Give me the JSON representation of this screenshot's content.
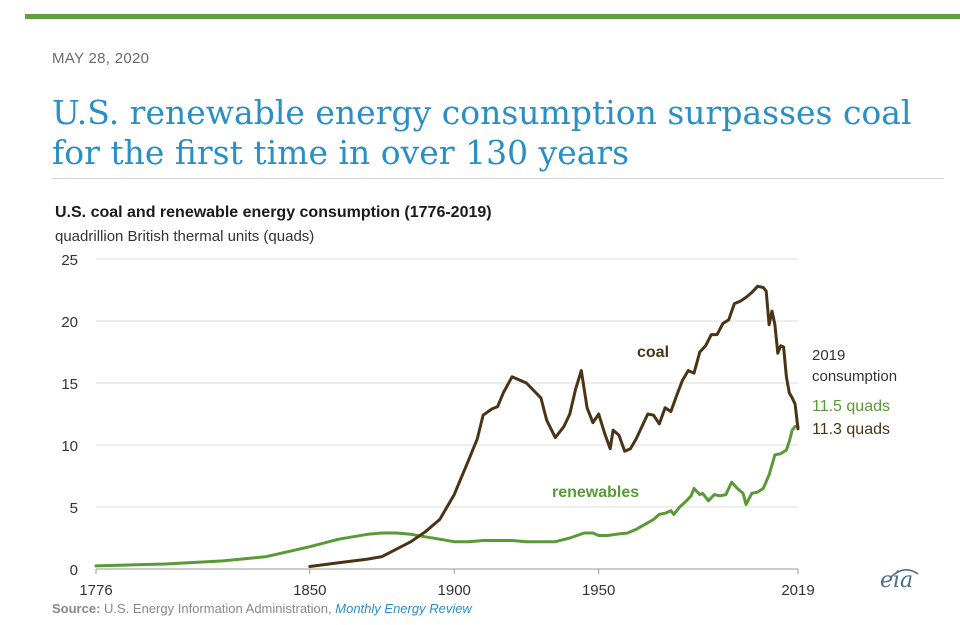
{
  "header": {
    "date": "MAY 28, 2020",
    "headline": "U.S. renewable energy consumption surpasses coal for the first time in over 130 years"
  },
  "chart_data": {
    "type": "line",
    "title": "U.S. coal and renewable energy consumption (1776-2019)",
    "subtitle": "quadrillion British thermal units (quads)",
    "xlabel": "",
    "ylabel": "",
    "xlim": [
      1776,
      2019
    ],
    "ylim": [
      0,
      25
    ],
    "x_ticks": [
      1776,
      1850,
      1900,
      1950,
      2019
    ],
    "y_ticks": [
      0,
      5,
      10,
      15,
      20,
      25
    ],
    "grid": true,
    "series": [
      {
        "name": "coal",
        "color": "#4a3415",
        "points": [
          [
            1850,
            0.2
          ],
          [
            1860,
            0.5
          ],
          [
            1870,
            0.8
          ],
          [
            1875,
            1.0
          ],
          [
            1880,
            1.6
          ],
          [
            1885,
            2.2
          ],
          [
            1890,
            3.0
          ],
          [
            1895,
            4.0
          ],
          [
            1900,
            6.0
          ],
          [
            1905,
            8.8
          ],
          [
            1908,
            10.5
          ],
          [
            1910,
            12.4
          ],
          [
            1913,
            12.9
          ],
          [
            1915,
            13.1
          ],
          [
            1917,
            14.2
          ],
          [
            1920,
            15.5
          ],
          [
            1925,
            15.0
          ],
          [
            1930,
            13.8
          ],
          [
            1932,
            12.0
          ],
          [
            1935,
            10.6
          ],
          [
            1938,
            11.5
          ],
          [
            1940,
            12.5
          ],
          [
            1942,
            14.5
          ],
          [
            1944,
            16.0
          ],
          [
            1946,
            13.0
          ],
          [
            1948,
            11.8
          ],
          [
            1950,
            12.5
          ],
          [
            1952,
            11.0
          ],
          [
            1954,
            9.7
          ],
          [
            1955,
            11.2
          ],
          [
            1957,
            10.8
          ],
          [
            1959,
            9.5
          ],
          [
            1961,
            9.7
          ],
          [
            1963,
            10.5
          ],
          [
            1965,
            11.5
          ],
          [
            1967,
            12.5
          ],
          [
            1969,
            12.4
          ],
          [
            1971,
            11.7
          ],
          [
            1973,
            13.0
          ],
          [
            1975,
            12.7
          ],
          [
            1977,
            14.0
          ],
          [
            1979,
            15.2
          ],
          [
            1981,
            16.0
          ],
          [
            1983,
            15.8
          ],
          [
            1985,
            17.5
          ],
          [
            1987,
            18.0
          ],
          [
            1989,
            18.9
          ],
          [
            1991,
            18.9
          ],
          [
            1993,
            19.8
          ],
          [
            1995,
            20.1
          ],
          [
            1997,
            21.4
          ],
          [
            1999,
            21.6
          ],
          [
            2001,
            21.9
          ],
          [
            2003,
            22.3
          ],
          [
            2005,
            22.8
          ],
          [
            2007,
            22.7
          ],
          [
            2008,
            22.4
          ],
          [
            2009,
            19.7
          ],
          [
            2010,
            20.8
          ],
          [
            2011,
            19.7
          ],
          [
            2012,
            17.4
          ],
          [
            2013,
            18.0
          ],
          [
            2014,
            17.9
          ],
          [
            2015,
            15.5
          ],
          [
            2016,
            14.2
          ],
          [
            2017,
            13.8
          ],
          [
            2018,
            13.3
          ],
          [
            2019,
            11.3
          ]
        ]
      },
      {
        "name": "renewables",
        "color": "#5a9a36",
        "points": [
          [
            1776,
            0.25
          ],
          [
            1800,
            0.4
          ],
          [
            1820,
            0.65
          ],
          [
            1835,
            1.0
          ],
          [
            1850,
            1.8
          ],
          [
            1860,
            2.4
          ],
          [
            1870,
            2.8
          ],
          [
            1875,
            2.9
          ],
          [
            1880,
            2.9
          ],
          [
            1885,
            2.8
          ],
          [
            1890,
            2.6
          ],
          [
            1895,
            2.4
          ],
          [
            1900,
            2.2
          ],
          [
            1905,
            2.2
          ],
          [
            1910,
            2.3
          ],
          [
            1920,
            2.3
          ],
          [
            1925,
            2.2
          ],
          [
            1930,
            2.2
          ],
          [
            1935,
            2.2
          ],
          [
            1940,
            2.5
          ],
          [
            1945,
            2.9
          ],
          [
            1948,
            2.9
          ],
          [
            1950,
            2.7
          ],
          [
            1953,
            2.7
          ],
          [
            1956,
            2.8
          ],
          [
            1960,
            2.9
          ],
          [
            1963,
            3.2
          ],
          [
            1966,
            3.6
          ],
          [
            1969,
            4.0
          ],
          [
            1971,
            4.4
          ],
          [
            1973,
            4.5
          ],
          [
            1975,
            4.7
          ],
          [
            1976,
            4.4
          ],
          [
            1978,
            5.0
          ],
          [
            1980,
            5.4
          ],
          [
            1982,
            5.9
          ],
          [
            1983,
            6.5
          ],
          [
            1985,
            6.0
          ],
          [
            1986,
            6.1
          ],
          [
            1988,
            5.5
          ],
          [
            1990,
            6.0
          ],
          [
            1992,
            5.9
          ],
          [
            1994,
            6.0
          ],
          [
            1996,
            7.0
          ],
          [
            1998,
            6.5
          ],
          [
            2000,
            6.1
          ],
          [
            2001,
            5.2
          ],
          [
            2003,
            6.1
          ],
          [
            2005,
            6.2
          ],
          [
            2007,
            6.5
          ],
          [
            2009,
            7.6
          ],
          [
            2011,
            9.2
          ],
          [
            2013,
            9.3
          ],
          [
            2015,
            9.6
          ],
          [
            2016,
            10.3
          ],
          [
            2017,
            11.2
          ],
          [
            2018,
            11.5
          ],
          [
            2019,
            11.5
          ]
        ]
      }
    ],
    "annotations": {
      "coal": "coal",
      "renewables": "renewables",
      "consumption_year": "2019",
      "consumption_label": "consumption",
      "renewables_value": "11.5 quads",
      "coal_value": "11.3 quads"
    }
  },
  "source": {
    "label": "Source:",
    "text": "U.S. Energy Information Administration,",
    "link": "Monthly Energy Review"
  },
  "logo": {
    "text": "eia",
    "icon": "eia-logo-icon"
  }
}
